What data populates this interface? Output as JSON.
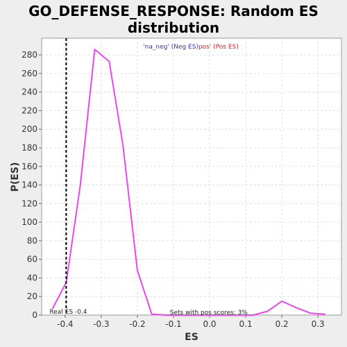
{
  "chart_data": {
    "type": "line",
    "title_line1": "GO_DEFENSE_RESPONSE: Random ES",
    "title_line2": "distribution",
    "xlabel": "ES",
    "ylabel": "P(ES)",
    "xlim": [
      -0.465,
      0.365
    ],
    "ylim": [
      0,
      298
    ],
    "x_ticks": [
      -0.4,
      -0.3,
      -0.2,
      -0.1,
      0.0,
      0.1,
      0.2,
      0.3
    ],
    "x_tick_labels": [
      "-0.4",
      "-0.3",
      "-0.2",
      "-0.1",
      "0.0",
      "0.1",
      "0.2",
      "0.3"
    ],
    "y_ticks": [
      0,
      20,
      40,
      60,
      80,
      100,
      120,
      140,
      160,
      180,
      200,
      220,
      240,
      260,
      280
    ],
    "y_tick_labels": [
      "0",
      "20",
      "40",
      "60",
      "80",
      "100",
      "120",
      "140",
      "160",
      "180",
      "200",
      "220",
      "240",
      "260",
      "280"
    ],
    "grid": true,
    "legend": {
      "placement": "top-center",
      "neg_text": "'na_neg' (Neg ES)",
      "neg_color": "#3333cc",
      "pos_text": "pos' (Pos ES)",
      "pos_color": "#dd2222"
    },
    "series": [
      {
        "color": "#ee44ee",
        "x": [
          -0.435,
          -0.397,
          -0.358,
          -0.318,
          -0.278,
          -0.24,
          -0.2,
          -0.16,
          -0.12,
          -0.08,
          -0.04,
          0.0,
          0.04,
          0.08,
          0.12,
          0.16,
          0.2,
          0.24,
          0.28,
          0.32
        ],
        "y": [
          7,
          35,
          140,
          286,
          273,
          183,
          48,
          1,
          0,
          0,
          0,
          0,
          0,
          0,
          0,
          4,
          15,
          8,
          2,
          1
        ]
      }
    ],
    "real_es": {
      "value": -0.397,
      "label": "Real ES -0.4",
      "color": "#000000"
    },
    "annotation": {
      "text": "Sets with pos scores: 3%",
      "x": -0.11,
      "y": 0
    }
  }
}
